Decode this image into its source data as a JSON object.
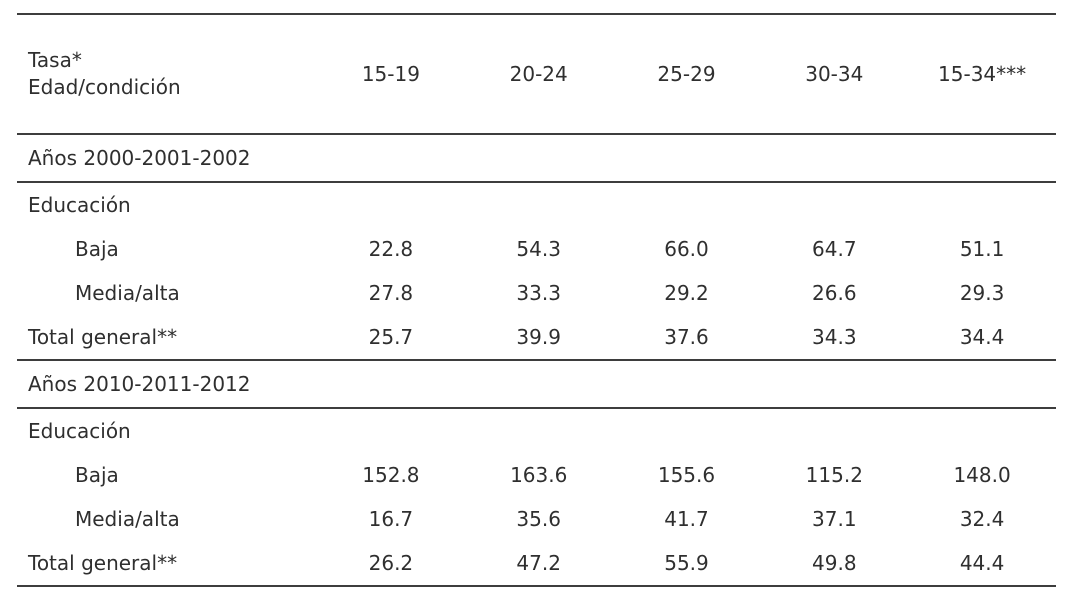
{
  "colors": {
    "background": "#ffffff",
    "text": "#2f2f2f",
    "rule": "#3d3d3d"
  },
  "table": {
    "header": {
      "title_line1": "Tasa*",
      "title_line2": "Edad/condición",
      "columns": [
        "15-19",
        "20-24",
        "25-29",
        "30-34",
        "15-34***"
      ]
    },
    "sections": [
      {
        "title": "Años 2000-2001-2002",
        "group_label": "Educación",
        "rows": [
          {
            "label": "Baja",
            "values": [
              "22.8",
              "54.3",
              "66.0",
              "64.7",
              "51.1"
            ]
          },
          {
            "label": "Media/alta",
            "values": [
              "27.8",
              "33.3",
              "29.2",
              "26.6",
              "29.3"
            ]
          },
          {
            "label": "Total general**",
            "values": [
              "25.7",
              "39.9",
              "37.6",
              "34.3",
              "34.4"
            ]
          }
        ]
      },
      {
        "title": "Años 2010-2011-2012",
        "group_label": "Educación",
        "rows": [
          {
            "label": "Baja",
            "values": [
              "152.8",
              "163.6",
              "155.6",
              "115.2",
              "148.0"
            ]
          },
          {
            "label": "Media/alta",
            "values": [
              "16.7",
              "35.6",
              "41.7",
              "37.1",
              "32.4"
            ]
          },
          {
            "label": "Total general**",
            "values": [
              "26.2",
              "47.2",
              "55.9",
              "49.8",
              "44.4"
            ]
          }
        ]
      }
    ]
  }
}
